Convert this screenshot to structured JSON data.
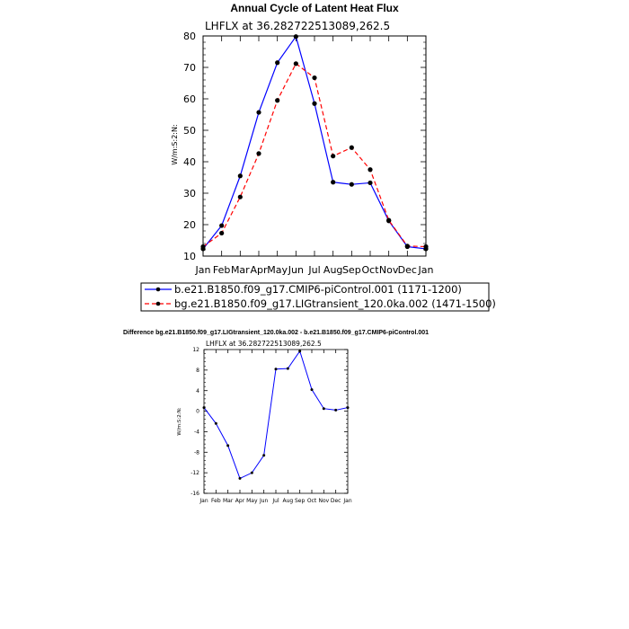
{
  "chart_data": [
    {
      "type": "line",
      "title": "Annual Cycle of Latent Heat Flux",
      "subtitle": "LHFLX at 36.282722513089,262.5",
      "xlabel": "",
      "ylabel": "W/m:S:2:N:",
      "categories": [
        "Jan",
        "Feb",
        "Mar",
        "Apr",
        "May",
        "Jun",
        "Jul",
        "Aug",
        "Sep",
        "Oct",
        "Nov",
        "Dec",
        "Jan"
      ],
      "ylim": [
        10,
        80
      ],
      "yticks": [
        10,
        20,
        30,
        40,
        50,
        60,
        70,
        80
      ],
      "series": [
        {
          "name": "b.e21.B1850.f09_g17.CMIP6-piControl.001 (1171-1200)",
          "color": "#0000ff",
          "dash": "solid",
          "values": [
            12.3,
            19.7,
            35.5,
            55.7,
            71.5,
            79.8,
            58.5,
            33.5,
            32.8,
            33.3,
            21.2,
            13.0,
            12.3
          ]
        },
        {
          "name": "bg.e21.B1850.f09_g17.LIGtransient_120.0ka.002 (1471-1500)",
          "color": "#ff0000",
          "dash": "dashed",
          "values": [
            13.0,
            17.3,
            28.8,
            42.6,
            59.5,
            71.2,
            66.7,
            41.8,
            44.5,
            37.5,
            21.4,
            13.2,
            13.0
          ]
        }
      ],
      "legend": "bottom"
    },
    {
      "type": "line",
      "title": "Difference bg.e21.B1850.f09_g17.LIGtransient_120.0ka.002 - b.e21.B1850.f09_g17.CMIP6-piControl.001",
      "subtitle": "LHFLX at 36.282722513089,262.5",
      "xlabel": "",
      "ylabel": "W/m:S:2:N:",
      "categories": [
        "Jan",
        "Feb",
        "Mar",
        "Apr",
        "May",
        "Jun",
        "Jul",
        "Aug",
        "Sep",
        "Oct",
        "Nov",
        "Dec",
        "Jan"
      ],
      "ylim": [
        -16,
        12
      ],
      "yticks": [
        -16,
        -12,
        -8,
        -4,
        0,
        4,
        8,
        12
      ],
      "series": [
        {
          "name": "difference",
          "color": "#0000ff",
          "dash": "solid",
          "values": [
            0.7,
            -2.4,
            -6.7,
            -13.1,
            -12.0,
            -8.6,
            8.2,
            8.3,
            11.7,
            4.2,
            0.5,
            0.2,
            0.7
          ]
        }
      ]
    }
  ]
}
